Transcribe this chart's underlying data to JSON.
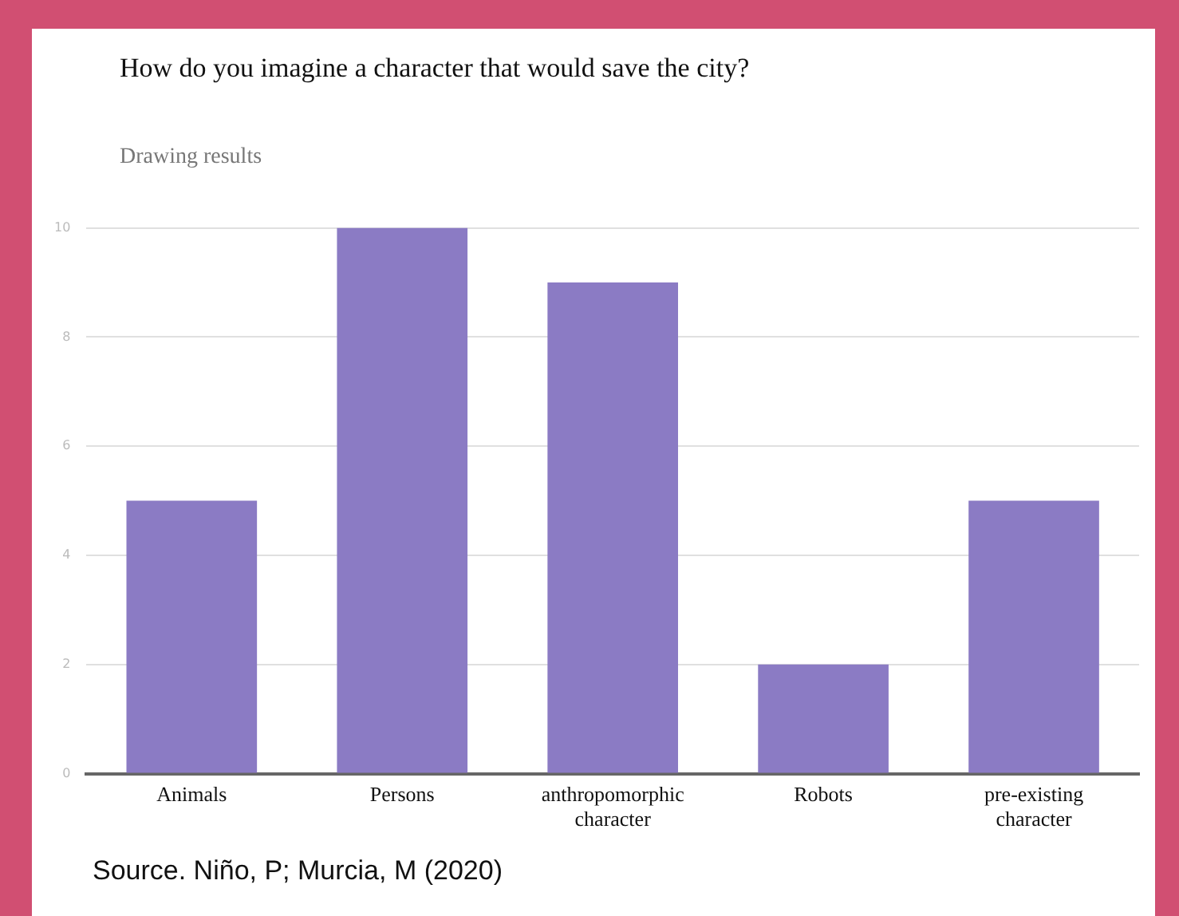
{
  "chart_data": {
    "type": "bar",
    "title": "How do you imagine a character that would save the city?",
    "subtitle": "Drawing results",
    "categories": [
      "Animals",
      "Persons",
      "anthropomorphic character",
      "Robots",
      "pre-existing character"
    ],
    "values": [
      5,
      10,
      9,
      2,
      5
    ],
    "color": "#8b7bc4",
    "ylim": [
      0,
      10
    ],
    "yticks": [
      0,
      2,
      4,
      6,
      8,
      10
    ],
    "grid": "y",
    "annotations": [
      "Source. Niño, P; Murcia, M (2020)"
    ]
  }
}
